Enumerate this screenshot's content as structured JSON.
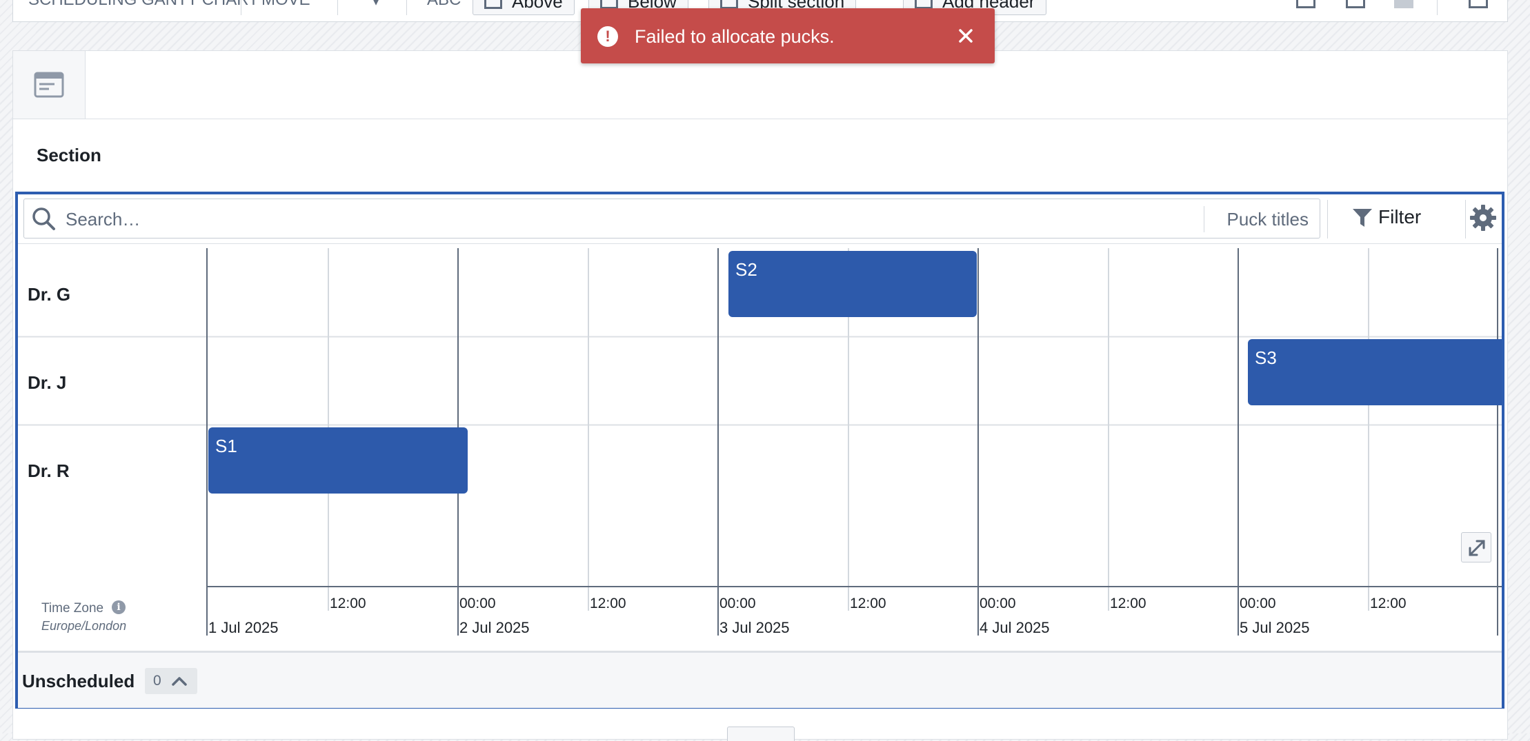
{
  "toolbar": {
    "partial_left": "SCHEDULING GANTT CHART",
    "partial_move": "MOVE",
    "partial_abc": "ABC",
    "above_label": "Above",
    "below_label": "Below",
    "split_label": "Split section",
    "add_header_label": "Add header"
  },
  "section": {
    "title": "Section"
  },
  "search": {
    "placeholder": "Search…",
    "mode_label": "Puck titles"
  },
  "filter": {
    "label": "Filter"
  },
  "rows": [
    {
      "label": "Dr. G"
    },
    {
      "label": "Dr. J"
    },
    {
      "label": "Dr. R"
    }
  ],
  "pucks": [
    {
      "title": "S2",
      "row": "Dr. G"
    },
    {
      "title": "S3",
      "row": "Dr. J"
    },
    {
      "title": "S1",
      "row": "Dr. R"
    }
  ],
  "timeline": {
    "time_zone_label": "Time Zone",
    "time_zone": "Europe/London",
    "ticks": [
      "12:00",
      "00:00",
      "12:00",
      "00:00",
      "12:00",
      "00:00",
      "12:00",
      "00:00",
      "12:00"
    ],
    "dates": [
      "1 Jul 2025",
      "2 Jul 2025",
      "3 Jul 2025",
      "4 Jul 2025",
      "5 Jul 2025"
    ]
  },
  "unscheduled": {
    "label": "Unscheduled",
    "count": "0"
  },
  "toast": {
    "message": "Failed to allocate pucks.",
    "intent": "danger",
    "color": "#c54c4a"
  },
  "colors": {
    "accent": "#2d5db0",
    "puck": "#2d5aab"
  }
}
